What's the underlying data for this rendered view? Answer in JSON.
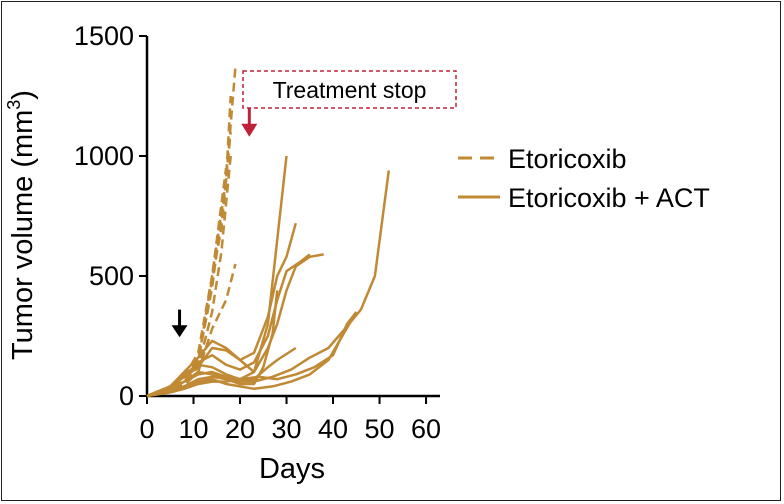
{
  "chart_data": {
    "type": "line",
    "xlabel": "Days",
    "ylabel": "Tumor volume (mm",
    "ylabel_sup": "3",
    "ylabel_close": ")",
    "xlim": [
      0,
      63
    ],
    "ylim": [
      0,
      1500
    ],
    "xticks": [
      0,
      10,
      20,
      30,
      40,
      50,
      60
    ],
    "yticks": [
      0,
      500,
      1000,
      1500
    ],
    "grid": false,
    "legend_position": "right",
    "color": "#c08a35",
    "annotation_color": "#c0203a",
    "annotation": {
      "text": "Treatment stop",
      "x": 22,
      "y_start": 1200,
      "y_end": 1080
    },
    "start_marker": {
      "x": 7,
      "y_start": 360,
      "y_end": 245
    },
    "series": [
      {
        "name": "Etoricoxib",
        "style": "dashed",
        "lines": [
          [
            [
              0,
              0
            ],
            [
              5,
              30
            ],
            [
              8,
              70
            ],
            [
              11,
              150
            ],
            [
              14,
              450
            ],
            [
              17,
              900
            ],
            [
              19,
              1370
            ]
          ],
          [
            [
              0,
              0
            ],
            [
              5,
              35
            ],
            [
              8,
              80
            ],
            [
              11,
              180
            ],
            [
              14,
              500
            ],
            [
              17,
              900
            ],
            [
              18,
              1250
            ]
          ],
          [
            [
              0,
              0
            ],
            [
              5,
              30
            ],
            [
              8,
              60
            ],
            [
              11,
              140
            ],
            [
              13,
              380
            ],
            [
              16,
              700
            ],
            [
              18,
              1100
            ]
          ],
          [
            [
              0,
              0
            ],
            [
              5,
              25
            ],
            [
              8,
              55
            ],
            [
              11,
              120
            ],
            [
              14,
              350
            ],
            [
              16,
              600
            ],
            [
              18,
              1000
            ]
          ],
          [
            [
              0,
              0
            ],
            [
              5,
              30
            ],
            [
              8,
              75
            ],
            [
              11,
              160
            ],
            [
              13,
              350
            ],
            [
              15,
              650
            ],
            [
              17,
              950
            ]
          ],
          [
            [
              0,
              0
            ],
            [
              5,
              20
            ],
            [
              8,
              45
            ],
            [
              11,
              100
            ],
            [
              14,
              280
            ],
            [
              17,
              400
            ],
            [
              19,
              550
            ]
          ]
        ]
      },
      {
        "name": "Etoricoxib + ACT",
        "style": "solid",
        "lines": [
          [
            [
              0,
              0
            ],
            [
              5,
              40
            ],
            [
              8,
              80
            ],
            [
              11,
              120
            ],
            [
              14,
              200
            ],
            [
              17,
              190
            ],
            [
              20,
              150
            ],
            [
              23,
              100
            ],
            [
              26,
              300
            ],
            [
              28,
              650
            ],
            [
              30,
              1000
            ]
          ],
          [
            [
              0,
              0
            ],
            [
              5,
              40
            ],
            [
              8,
              100
            ],
            [
              11,
              160
            ],
            [
              14,
              230
            ],
            [
              17,
              200
            ],
            [
              20,
              150
            ],
            [
              23,
              180
            ],
            [
              26,
              330
            ],
            [
              28,
              500
            ],
            [
              30,
              580
            ],
            [
              32,
              720
            ]
          ],
          [
            [
              0,
              0
            ],
            [
              5,
              40
            ],
            [
              8,
              80
            ],
            [
              11,
              140
            ],
            [
              14,
              170
            ],
            [
              17,
              130
            ],
            [
              20,
              110
            ],
            [
              23,
              140
            ],
            [
              26,
              250
            ],
            [
              28,
              400
            ],
            [
              30,
              520
            ],
            [
              33,
              560
            ],
            [
              35,
              590
            ]
          ],
          [
            [
              0,
              0
            ],
            [
              5,
              40
            ],
            [
              8,
              90
            ],
            [
              11,
              130
            ],
            [
              14,
              120
            ],
            [
              17,
              90
            ],
            [
              20,
              70
            ],
            [
              23,
              100
            ],
            [
              26,
              200
            ],
            [
              28,
              300
            ],
            [
              30,
              440
            ],
            [
              32,
              540
            ],
            [
              35,
              580
            ],
            [
              38,
              590
            ]
          ],
          [
            [
              0,
              0
            ],
            [
              5,
              30
            ],
            [
              8,
              60
            ],
            [
              11,
              100
            ],
            [
              14,
              90
            ],
            [
              17,
              70
            ],
            [
              20,
              50
            ],
            [
              23,
              50
            ],
            [
              25,
              120
            ],
            [
              27,
              260
            ],
            [
              28,
              440
            ]
          ],
          [
            [
              0,
              0
            ],
            [
              5,
              30
            ],
            [
              8,
              60
            ],
            [
              11,
              90
            ],
            [
              14,
              100
            ],
            [
              17,
              80
            ],
            [
              20,
              60
            ],
            [
              23,
              70
            ],
            [
              26,
              120
            ],
            [
              28,
              150
            ],
            [
              32,
              200
            ]
          ],
          [
            [
              0,
              0
            ],
            [
              5,
              20
            ],
            [
              8,
              40
            ],
            [
              11,
              60
            ],
            [
              14,
              70
            ],
            [
              17,
              50
            ],
            [
              20,
              40
            ],
            [
              23,
              30
            ],
            [
              27,
              40
            ],
            [
              31,
              60
            ],
            [
              35,
              90
            ],
            [
              39,
              150
            ],
            [
              42,
              250
            ],
            [
              45,
              350
            ]
          ],
          [
            [
              0,
              0
            ],
            [
              5,
              20
            ],
            [
              8,
              40
            ],
            [
              11,
              70
            ],
            [
              14,
              80
            ],
            [
              17,
              70
            ],
            [
              20,
              60
            ],
            [
              23,
              60
            ],
            [
              27,
              80
            ],
            [
              31,
              110
            ],
            [
              35,
              160
            ],
            [
              39,
              200
            ],
            [
              43,
              290
            ],
            [
              46,
              360
            ],
            [
              49,
              500
            ],
            [
              52,
              940
            ]
          ],
          [
            [
              0,
              0
            ],
            [
              5,
              15
            ],
            [
              8,
              30
            ],
            [
              11,
              50
            ],
            [
              14,
              60
            ],
            [
              17,
              60
            ],
            [
              20,
              70
            ],
            [
              24,
              80
            ],
            [
              28,
              70
            ],
            [
              32,
              90
            ],
            [
              36,
              120
            ],
            [
              40,
              170
            ],
            [
              43,
              300
            ],
            [
              45,
              350
            ]
          ]
        ]
      }
    ]
  }
}
